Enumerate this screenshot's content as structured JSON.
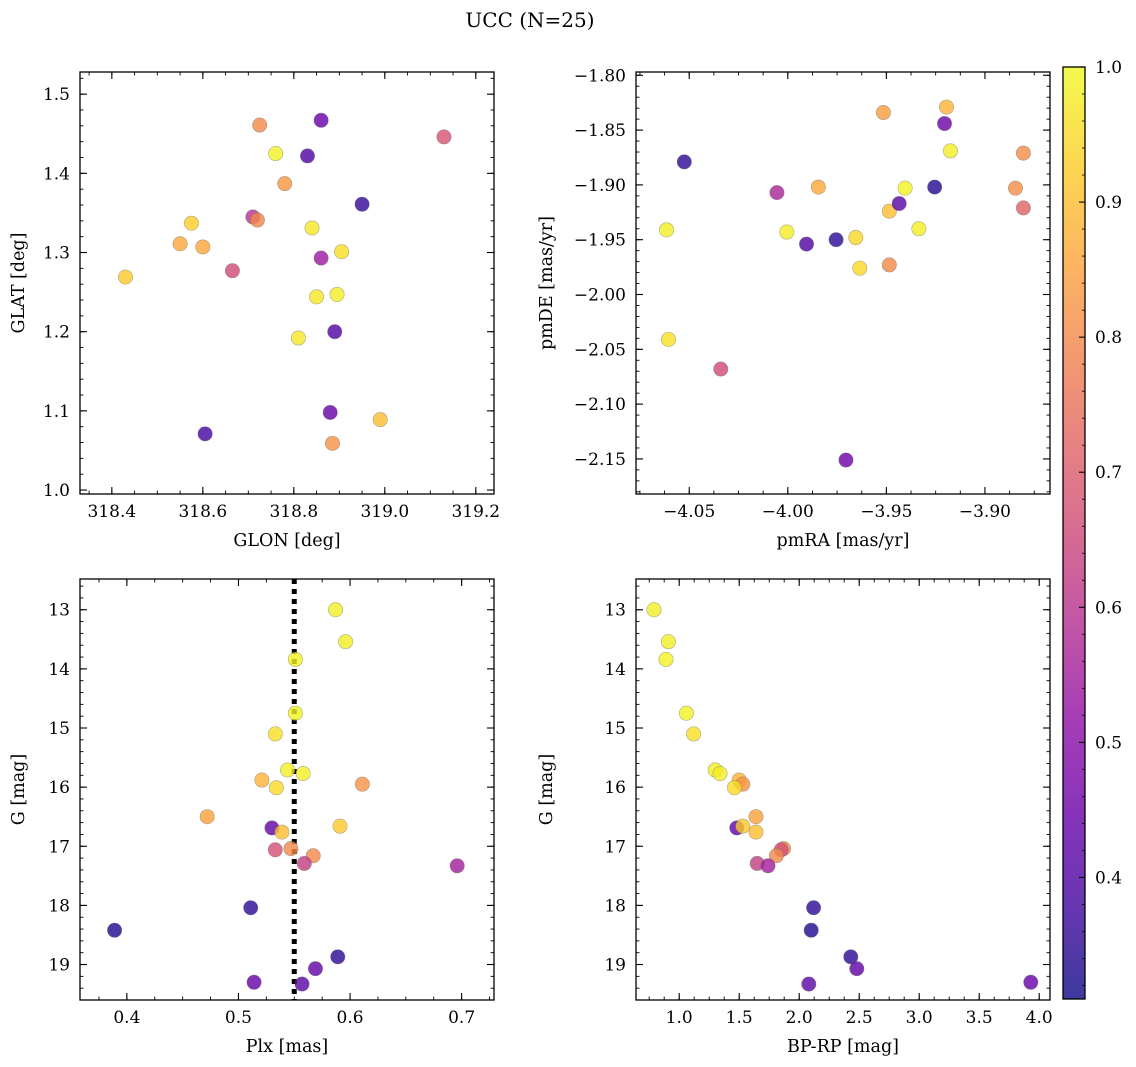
{
  "figure": {
    "title": "UCC (N=25)",
    "colormap": [
      "#0d0887",
      "#41049d",
      "#6a00a8",
      "#8f0da4",
      "#b12a90",
      "#cc4778",
      "#e16462",
      "#f2844b",
      "#fca636",
      "#fcce25",
      "#f0f921"
    ],
    "point_alpha": 0.8,
    "colorbar": {
      "range": [
        0.31,
        1.0
      ],
      "ticks": [
        "0.4",
        "0.5",
        "0.6",
        "0.7",
        "0.8",
        "0.9",
        "1.0"
      ],
      "tick_values": [
        0.4,
        0.5,
        0.6,
        0.7,
        0.8,
        0.9,
        1.0
      ]
    }
  },
  "chart_data": [
    {
      "type": "scatter",
      "xlabel": "GLON [deg]",
      "ylabel": "GLAT [deg]",
      "xlim": [
        318.33,
        319.24
      ],
      "ylim": [
        0.995,
        1.528
      ],
      "y_inverted": false,
      "x_ticks": [
        "318.4",
        "318.6",
        "318.8",
        "319.0",
        "319.2"
      ],
      "x_tick_values": [
        318.4,
        318.6,
        318.8,
        319.0,
        319.2
      ],
      "y_ticks": [
        "1.0",
        "1.1",
        "1.2",
        "1.3",
        "1.4",
        "1.5"
      ],
      "y_tick_values": [
        1.0,
        1.1,
        1.2,
        1.3,
        1.4,
        1.5
      ],
      "points": [
        {
          "x": 318.43,
          "y": 1.269,
          "c": 0.92
        },
        {
          "x": 318.55,
          "y": 1.311,
          "c": 0.86
        },
        {
          "x": 318.575,
          "y": 1.337,
          "c": 0.93
        },
        {
          "x": 318.6,
          "y": 1.307,
          "c": 0.86
        },
        {
          "x": 318.605,
          "y": 1.071,
          "c": 0.38
        },
        {
          "x": 318.665,
          "y": 1.277,
          "c": 0.66
        },
        {
          "x": 318.71,
          "y": 1.345,
          "c": 0.6
        },
        {
          "x": 318.72,
          "y": 1.341,
          "c": 0.8
        },
        {
          "x": 318.725,
          "y": 1.461,
          "c": 0.8
        },
        {
          "x": 318.76,
          "y": 1.425,
          "c": 0.99
        },
        {
          "x": 318.78,
          "y": 1.387,
          "c": 0.83
        },
        {
          "x": 318.81,
          "y": 1.192,
          "c": 0.97
        },
        {
          "x": 318.83,
          "y": 1.422,
          "c": 0.4
        },
        {
          "x": 318.84,
          "y": 1.331,
          "c": 0.97
        },
        {
          "x": 318.85,
          "y": 1.244,
          "c": 0.97
        },
        {
          "x": 318.86,
          "y": 1.467,
          "c": 0.44
        },
        {
          "x": 318.86,
          "y": 1.293,
          "c": 0.54
        },
        {
          "x": 318.88,
          "y": 1.098,
          "c": 0.44
        },
        {
          "x": 318.885,
          "y": 1.059,
          "c": 0.82
        },
        {
          "x": 318.89,
          "y": 1.2,
          "c": 0.4
        },
        {
          "x": 318.895,
          "y": 1.247,
          "c": 0.98
        },
        {
          "x": 318.905,
          "y": 1.301,
          "c": 0.96
        },
        {
          "x": 318.95,
          "y": 1.361,
          "c": 0.36
        },
        {
          "x": 318.99,
          "y": 1.089,
          "c": 0.9
        },
        {
          "x": 319.13,
          "y": 1.446,
          "c": 0.68
        }
      ]
    },
    {
      "type": "scatter",
      "xlabel": "pmRA [mas/yr]",
      "ylabel": "pmDE [mas/yr]",
      "xlim": [
        -4.077,
        -3.867
      ],
      "ylim": [
        -2.182,
        -1.797
      ],
      "y_inverted": false,
      "x_ticks": [
        "−4.05",
        "−4.00",
        "−3.95",
        "−3.90"
      ],
      "x_tick_values": [
        -4.05,
        -4.0,
        -3.95,
        -3.9
      ],
      "y_ticks": [
        "−1.80",
        "−1.85",
        "−1.90",
        "−1.95",
        "−2.00",
        "−2.05",
        "−2.10",
        "−2.15"
      ],
      "y_tick_values": [
        -1.8,
        -1.85,
        -1.9,
        -1.95,
        -2.0,
        -2.05,
        -2.1,
        -2.15
      ],
      "points": [
        {
          "x": -4.0615,
          "y": -1.941,
          "c": 0.98
        },
        {
          "x": -4.0605,
          "y": -2.041,
          "c": 0.96
        },
        {
          "x": -4.0525,
          "y": -1.879,
          "c": 0.35
        },
        {
          "x": -4.034,
          "y": -2.068,
          "c": 0.66
        },
        {
          "x": -4.0055,
          "y": -1.907,
          "c": 0.57
        },
        {
          "x": -4.0005,
          "y": -1.943,
          "c": 0.98
        },
        {
          "x": -3.9845,
          "y": -1.902,
          "c": 0.86
        },
        {
          "x": -3.9905,
          "y": -1.954,
          "c": 0.4
        },
        {
          "x": -3.9755,
          "y": -1.95,
          "c": 0.35
        },
        {
          "x": -3.9705,
          "y": -2.151,
          "c": 0.45
        },
        {
          "x": -3.9655,
          "y": -1.948,
          "c": 0.94
        },
        {
          "x": -3.9635,
          "y": -1.976,
          "c": 0.95
        },
        {
          "x": -3.9515,
          "y": -1.834,
          "c": 0.84
        },
        {
          "x": -3.9485,
          "y": -1.924,
          "c": 0.9
        },
        {
          "x": -3.9485,
          "y": -1.973,
          "c": 0.8
        },
        {
          "x": -3.9435,
          "y": -1.917,
          "c": 0.42
        },
        {
          "x": -3.9405,
          "y": -1.903,
          "c": 0.99
        },
        {
          "x": -3.9335,
          "y": -1.94,
          "c": 0.98
        },
        {
          "x": -3.9255,
          "y": -1.902,
          "c": 0.34
        },
        {
          "x": -3.9205,
          "y": -1.844,
          "c": 0.45
        },
        {
          "x": -3.9195,
          "y": -1.829,
          "c": 0.88
        },
        {
          "x": -3.9175,
          "y": -1.869,
          "c": 0.98
        },
        {
          "x": -3.8845,
          "y": -1.903,
          "c": 0.81
        },
        {
          "x": -3.8805,
          "y": -1.871,
          "c": 0.81
        },
        {
          "x": -3.8805,
          "y": -1.921,
          "c": 0.72
        }
      ]
    },
    {
      "type": "scatter",
      "xlabel": "Plx [mas]",
      "ylabel": "G [mag]",
      "xlim": [
        0.358,
        0.729
      ],
      "ylim": [
        12.48,
        19.6
      ],
      "y_inverted": true,
      "x_ticks": [
        "0.4",
        "0.5",
        "0.6",
        "0.7"
      ],
      "x_tick_values": [
        0.4,
        0.5,
        0.6,
        0.7
      ],
      "y_ticks": [
        "13",
        "14",
        "15",
        "16",
        "17",
        "18",
        "19"
      ],
      "y_tick_values": [
        13,
        14,
        15,
        16,
        17,
        18,
        19
      ],
      "vline": {
        "x": 0.55,
        "style": "dotted",
        "color": "#000000"
      },
      "points": [
        {
          "x": 0.587,
          "y": 13.0,
          "c": 0.98
        },
        {
          "x": 0.596,
          "y": 13.54,
          "c": 0.98
        },
        {
          "x": 0.551,
          "y": 13.84,
          "c": 0.99
        },
        {
          "x": 0.551,
          "y": 14.75,
          "c": 0.99
        },
        {
          "x": 0.533,
          "y": 15.1,
          "c": 0.96
        },
        {
          "x": 0.544,
          "y": 15.71,
          "c": 0.98
        },
        {
          "x": 0.558,
          "y": 15.77,
          "c": 0.98
        },
        {
          "x": 0.521,
          "y": 15.88,
          "c": 0.88
        },
        {
          "x": 0.534,
          "y": 16.01,
          "c": 0.95
        },
        {
          "x": 0.611,
          "y": 15.95,
          "c": 0.82
        },
        {
          "x": 0.472,
          "y": 16.5,
          "c": 0.85
        },
        {
          "x": 0.53,
          "y": 16.69,
          "c": 0.43
        },
        {
          "x": 0.591,
          "y": 16.66,
          "c": 0.92
        },
        {
          "x": 0.539,
          "y": 16.76,
          "c": 0.9
        },
        {
          "x": 0.547,
          "y": 17.04,
          "c": 0.8
        },
        {
          "x": 0.533,
          "y": 17.06,
          "c": 0.67
        },
        {
          "x": 0.567,
          "y": 17.16,
          "c": 0.8
        },
        {
          "x": 0.559,
          "y": 17.29,
          "c": 0.63
        },
        {
          "x": 0.696,
          "y": 17.33,
          "c": 0.55
        },
        {
          "x": 0.511,
          "y": 18.04,
          "c": 0.35
        },
        {
          "x": 0.389,
          "y": 18.42,
          "c": 0.33
        },
        {
          "x": 0.589,
          "y": 18.87,
          "c": 0.35
        },
        {
          "x": 0.569,
          "y": 19.07,
          "c": 0.43
        },
        {
          "x": 0.514,
          "y": 19.3,
          "c": 0.44
        },
        {
          "x": 0.557,
          "y": 19.33,
          "c": 0.42
        }
      ]
    },
    {
      "type": "scatter",
      "xlabel": "BP-RP [mag]",
      "ylabel": "G [mag]",
      "xlim": [
        0.64,
        4.09
      ],
      "ylim": [
        12.48,
        19.6
      ],
      "y_inverted": true,
      "x_ticks": [
        "1.0",
        "1.5",
        "2.0",
        "2.5",
        "3.0",
        "3.5",
        "4.0"
      ],
      "x_tick_values": [
        1.0,
        1.5,
        2.0,
        2.5,
        3.0,
        3.5,
        4.0
      ],
      "y_ticks": [
        "13",
        "14",
        "15",
        "16",
        "17",
        "18",
        "19"
      ],
      "y_tick_values": [
        13,
        14,
        15,
        16,
        17,
        18,
        19
      ],
      "points": [
        {
          "x": 0.79,
          "y": 13.0,
          "c": 0.98
        },
        {
          "x": 0.91,
          "y": 13.54,
          "c": 0.98
        },
        {
          "x": 0.89,
          "y": 13.84,
          "c": 0.99
        },
        {
          "x": 1.06,
          "y": 14.75,
          "c": 0.99
        },
        {
          "x": 1.12,
          "y": 15.1,
          "c": 0.96
        },
        {
          "x": 1.3,
          "y": 15.71,
          "c": 0.98
        },
        {
          "x": 1.34,
          "y": 15.77,
          "c": 0.98
        },
        {
          "x": 1.5,
          "y": 15.88,
          "c": 0.88
        },
        {
          "x": 1.53,
          "y": 15.95,
          "c": 0.82
        },
        {
          "x": 1.46,
          "y": 16.01,
          "c": 0.95
        },
        {
          "x": 1.64,
          "y": 16.5,
          "c": 0.85
        },
        {
          "x": 1.48,
          "y": 16.69,
          "c": 0.43
        },
        {
          "x": 1.53,
          "y": 16.66,
          "c": 0.92
        },
        {
          "x": 1.64,
          "y": 16.76,
          "c": 0.9
        },
        {
          "x": 1.87,
          "y": 17.04,
          "c": 0.8
        },
        {
          "x": 1.85,
          "y": 17.06,
          "c": 0.67
        },
        {
          "x": 1.81,
          "y": 17.16,
          "c": 0.8
        },
        {
          "x": 1.65,
          "y": 17.29,
          "c": 0.63
        },
        {
          "x": 1.74,
          "y": 17.33,
          "c": 0.55
        },
        {
          "x": 2.12,
          "y": 18.04,
          "c": 0.35
        },
        {
          "x": 2.1,
          "y": 18.42,
          "c": 0.33
        },
        {
          "x": 2.43,
          "y": 18.87,
          "c": 0.35
        },
        {
          "x": 2.48,
          "y": 19.07,
          "c": 0.43
        },
        {
          "x": 3.93,
          "y": 19.3,
          "c": 0.44
        },
        {
          "x": 2.08,
          "y": 19.33,
          "c": 0.42
        }
      ]
    }
  ]
}
